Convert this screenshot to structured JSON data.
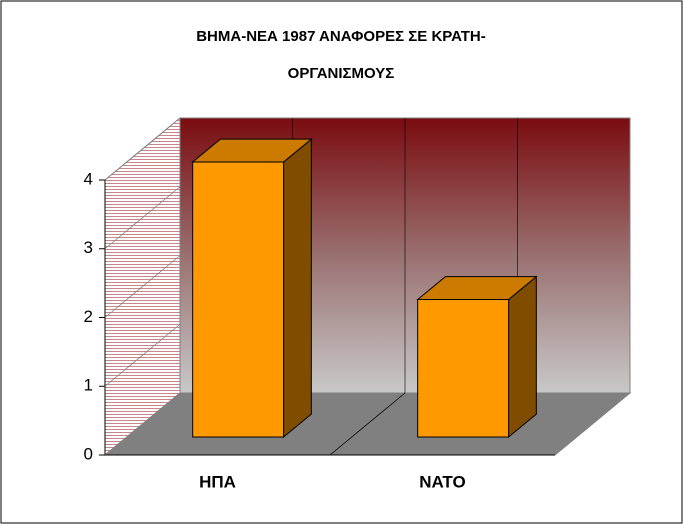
{
  "chart_data": {
    "type": "bar3d",
    "title_lines": [
      "ΒΗΜΑ-ΝΕΑ 1987 ΑΝΑΦΟΡΕΣ ΣΕ ΚΡΑΤΗ-",
      "ΟΡΓΑΝΙΣΜΟΥΣ"
    ],
    "categories": [
      "ΗΠΑ",
      "ΝΑΤΟ"
    ],
    "values": [
      4,
      2
    ],
    "color": "#ff9900",
    "ylim": [
      0,
      4
    ],
    "yticks": [
      0,
      1,
      2,
      3,
      4
    ]
  }
}
